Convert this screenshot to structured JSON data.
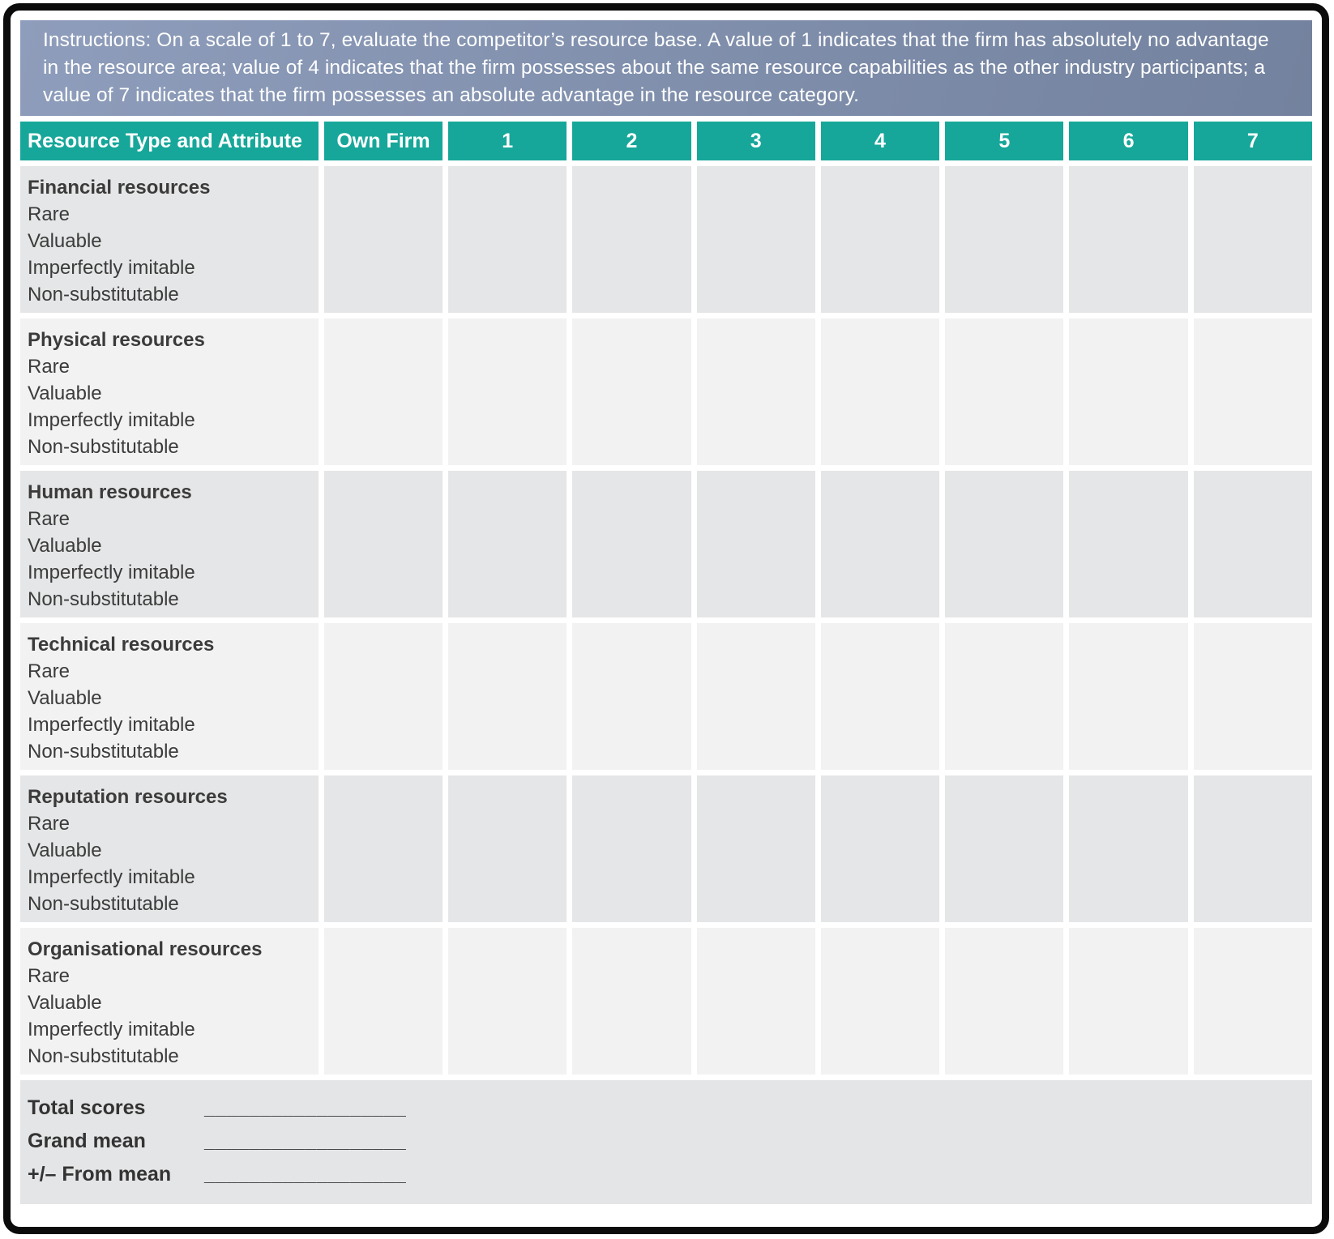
{
  "instructions": "Instructions: On a scale of 1 to 7, evaluate the competitor’s resource base. A value of 1 indicates that the firm has absolutely no advantage in the resource area; value of 4 indicates that the firm possesses about the same resource capabilities as the other industry participants; a value of 7 indicates that the firm possesses an absolute advantage in the resource category.",
  "table": {
    "header": [
      "Resource Type and Attribute",
      "Own Firm",
      "1",
      "2",
      "3",
      "4",
      "5",
      "6",
      "7"
    ],
    "rows": [
      {
        "title": "Financial resources",
        "attributes": [
          "Rare",
          "Valuable",
          "Imperfectly imitable",
          "Non-substitutable"
        ]
      },
      {
        "title": "Physical resources",
        "attributes": [
          "Rare",
          "Valuable",
          "Imperfectly imitable",
          "Non-substitutable"
        ]
      },
      {
        "title": "Human resources",
        "attributes": [
          "Rare",
          "Valuable",
          "Imperfectly imitable",
          "Non-substitutable"
        ]
      },
      {
        "title": "Technical resources",
        "attributes": [
          "Rare",
          "Valuable",
          "Imperfectly imitable",
          "Non-substitutable"
        ]
      },
      {
        "title": "Reputation resources",
        "attributes": [
          "Rare",
          "Valuable",
          "Imperfectly imitable",
          "Non-substitutable"
        ]
      },
      {
        "title": "Organisational resources",
        "attributes": [
          "Rare",
          "Valuable",
          "Imperfectly imitable",
          "Non-substitutable"
        ]
      }
    ]
  },
  "footer": {
    "items": [
      {
        "label": "Total scores",
        "value": "__________________"
      },
      {
        "label": "Grand mean",
        "value": "__________________"
      },
      {
        "label": "+/– From mean",
        "value": "__________________"
      }
    ]
  },
  "colors": {
    "header_teal": "#16a79a",
    "row_dark": "#e5e6e7",
    "row_light": "#f2f2f3",
    "footer_bg": "#e4e5e7",
    "banner_gradient_from": "#8e9dbb",
    "banner_gradient_to": "#73829e",
    "text_dark": "#3b3b3b",
    "frame_border": "#0b0b0b"
  }
}
